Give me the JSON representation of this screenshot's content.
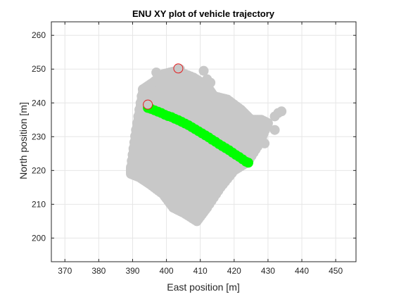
{
  "chart_data": {
    "type": "scatter",
    "title": "ENU XY plot of vehicle trajectory",
    "xlabel": "East position [m]",
    "ylabel": "North position [m]",
    "xlim": [
      366,
      456
    ],
    "ylim": [
      193,
      264
    ],
    "xticks": [
      370,
      380,
      390,
      400,
      410,
      420,
      430,
      440,
      450
    ],
    "yticks": [
      200,
      210,
      220,
      230,
      240,
      250,
      260
    ],
    "grid": true,
    "colors": {
      "cloud": "#c8c8c8",
      "track": "#00ff00",
      "marker_fill": "#c8c8c8",
      "marker_edge": "#e41a1c",
      "axes": "#262626",
      "grid": "#e6e6e6"
    },
    "cloud_region": {
      "polygon": [
        [
          389.5,
          221
        ],
        [
          391,
          232
        ],
        [
          393,
          244
        ],
        [
          396,
          246
        ],
        [
          399,
          248.5
        ],
        [
          403,
          249.5
        ],
        [
          408,
          247.5
        ],
        [
          412,
          245
        ],
        [
          414,
          242
        ],
        [
          418,
          241
        ],
        [
          422,
          238
        ],
        [
          425,
          235
        ],
        [
          428,
          235
        ],
        [
          430,
          234
        ],
        [
          427.5,
          228
        ],
        [
          424,
          222.5
        ],
        [
          420,
          220
        ],
        [
          416,
          215
        ],
        [
          412,
          209
        ],
        [
          409,
          205
        ],
        [
          405,
          207.5
        ],
        [
          402,
          209
        ],
        [
          399,
          213
        ],
        [
          395,
          216
        ],
        [
          392,
          218
        ],
        [
          389.5,
          219
        ]
      ],
      "extra_points": [
        [
          400,
          248.5
        ],
        [
          397,
          249
        ],
        [
          404,
          250
        ],
        [
          411,
          249.5
        ],
        [
          412,
          247
        ],
        [
          413,
          246
        ],
        [
          433,
          237
        ],
        [
          434,
          237.5
        ],
        [
          432,
          236
        ],
        [
          428,
          232.5
        ],
        [
          432,
          232
        ],
        [
          429,
          228
        ]
      ]
    },
    "series": [
      {
        "values": [
          [
            394.5,
            238.5
          ],
          [
            395.5,
            238.2
          ],
          [
            396.5,
            237.8
          ],
          [
            397.5,
            237.4
          ],
          [
            398.5,
            237.0
          ],
          [
            399.5,
            236.5
          ],
          [
            400.5,
            236.1
          ],
          [
            401.5,
            235.8
          ],
          [
            402.5,
            235.3
          ],
          [
            403.5,
            234.9
          ],
          [
            404.5,
            234.4
          ],
          [
            405.5,
            233.9
          ],
          [
            406.5,
            233.4
          ],
          [
            407.5,
            232.8
          ],
          [
            408.5,
            232.2
          ],
          [
            409.5,
            231.6
          ],
          [
            410.5,
            231.0
          ],
          [
            411.5,
            230.4
          ],
          [
            412.5,
            229.8
          ],
          [
            413.5,
            229.1
          ],
          [
            414.5,
            228.5
          ],
          [
            415.5,
            227.8
          ],
          [
            416.5,
            227.2
          ],
          [
            417.5,
            226.6
          ],
          [
            418.5,
            226.0
          ],
          [
            419.5,
            225.3
          ],
          [
            420.5,
            224.6
          ],
          [
            421.5,
            224.0
          ],
          [
            422.5,
            223.3
          ],
          [
            423.5,
            222.6
          ],
          [
            424.2,
            222.3
          ]
        ]
      }
    ],
    "highlight_points": [
      [
        394.5,
        239.5
      ],
      [
        403.5,
        250.2
      ]
    ]
  }
}
